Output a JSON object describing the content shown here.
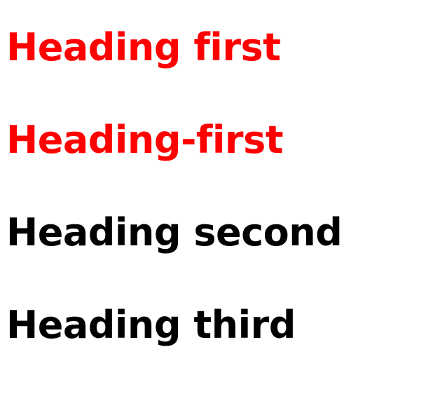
{
  "headings": [
    {
      "text": "Heading first",
      "color": "#ff0000"
    },
    {
      "text": "Heading-first",
      "color": "#ff0000"
    },
    {
      "text": "Heading second",
      "color": "#000000"
    },
    {
      "text": "Heading third",
      "color": "#000000"
    }
  ]
}
